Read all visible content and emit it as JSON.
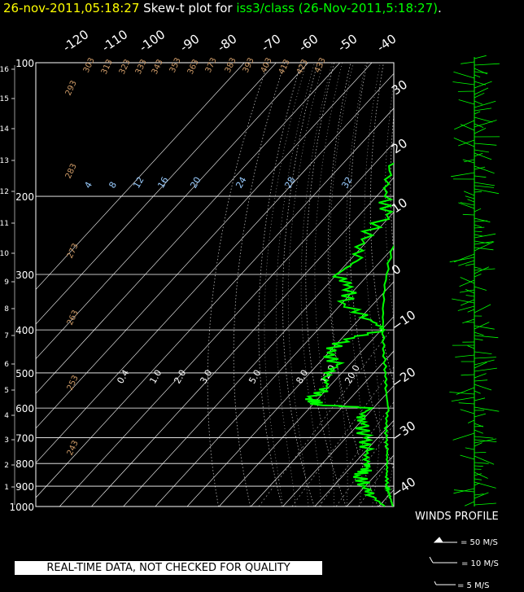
{
  "title": {
    "date": "26-nov-2011,05:18:27",
    "middle": "Skew-t plot for",
    "source": "iss3/class (26-Nov-2011,5:18:27)",
    "end": "."
  },
  "footer": {
    "quality_note": "REAL-TIME DATA, NOT CHECKED FOR QUALITY",
    "winds_title": "WINDS PROFILE",
    "wind_keys": [
      "= 50 M/S",
      "= 10 M/S",
      "= 5 M/S"
    ]
  },
  "colors": {
    "background": "#000000",
    "temperature": "#00ff00",
    "dewpoint": "#00ff00",
    "grid": "#ffffff",
    "theta_labels": "#cc9966",
    "mixing_labels": "#99ccff",
    "title_date": "#ffff00",
    "title_source": "#00ff00"
  },
  "chart_data": {
    "type": "skew-t",
    "pressure_axis": {
      "label_values": [
        100,
        200,
        300,
        400,
        500,
        600,
        700,
        800,
        900,
        1000
      ],
      "range_hpa": [
        1000,
        100
      ],
      "scale": "log"
    },
    "height_axis_km": {
      "ticks": [
        1,
        2,
        3,
        4,
        5,
        6,
        7,
        8,
        9,
        10,
        11,
        12,
        13,
        14,
        15,
        16
      ]
    },
    "temperature_top_labels": [
      -120,
      -110,
      -100,
      -90,
      -80,
      -70,
      -60,
      -50,
      -40
    ],
    "temperature_right_labels": [
      30,
      20,
      10,
      0,
      -10,
      -20,
      -30,
      -40
    ],
    "theta_labels": [
      {
        "text": "293"
      },
      {
        "text": "303"
      },
      {
        "text": "313"
      },
      {
        "text": "323"
      },
      {
        "text": "333"
      },
      {
        "text": "343"
      },
      {
        "text": "353"
      },
      {
        "text": "363"
      },
      {
        "text": "373"
      },
      {
        "text": "383"
      },
      {
        "text": "393"
      },
      {
        "text": "403"
      },
      {
        "text": "413"
      },
      {
        "text": "423"
      },
      {
        "text": "433"
      },
      {
        "text": "283"
      },
      {
        "text": "273"
      },
      {
        "text": "263"
      },
      {
        "text": "253"
      },
      {
        "text": "243"
      }
    ],
    "thetae_labels": [
      "4",
      "8",
      "12",
      "16",
      "20",
      "24",
      "28",
      "32"
    ],
    "mixing_ratio_labels": [
      "0.4",
      "1.0",
      "2.0",
      "3.0",
      "5.0",
      "8.0",
      "12.0",
      "20.0"
    ],
    "temperature_profile": [
      {
        "p": 1000,
        "t": 14.5
      },
      {
        "p": 960,
        "t": 11.5
      },
      {
        "p": 925,
        "t": 8.8
      },
      {
        "p": 900,
        "t": 6.8
      },
      {
        "p": 850,
        "t": 3.6
      },
      {
        "p": 800,
        "t": 0.3
      },
      {
        "p": 750,
        "t": -3.3
      },
      {
        "p": 700,
        "t": -7.4
      },
      {
        "p": 650,
        "t": -11.6
      },
      {
        "p": 600,
        "t": -15.3
      },
      {
        "p": 550,
        "t": -20.8
      },
      {
        "p": 500,
        "t": -26.2
      },
      {
        "p": 450,
        "t": -32.6
      },
      {
        "p": 400,
        "t": -39.4
      },
      {
        "p": 350,
        "t": -46.8
      },
      {
        "p": 300,
        "t": -54.4
      },
      {
        "p": 250,
        "t": -61.8
      },
      {
        "p": 200,
        "t": -68.9
      },
      {
        "p": 175,
        "t": -72.4
      },
      {
        "p": 150,
        "t": -75.6
      },
      {
        "p": 125,
        "t": -79.1
      },
      {
        "p": 100,
        "t": -81.5
      }
    ],
    "dewpoint_profile": [
      {
        "p": 1000,
        "t": 12.0
      },
      {
        "p": 950,
        "t": 5.2
      },
      {
        "p": 900,
        "t": 0.0
      },
      {
        "p": 850,
        "t": -5.2
      },
      {
        "p": 820,
        "t": -4.1
      },
      {
        "p": 800,
        "t": -6.2
      },
      {
        "p": 750,
        "t": -9.8
      },
      {
        "p": 700,
        "t": -14.2
      },
      {
        "p": 650,
        "t": -19.2
      },
      {
        "p": 620,
        "t": -22.1
      },
      {
        "p": 600,
        "t": -20.5
      },
      {
        "p": 590,
        "t": -38.2
      },
      {
        "p": 570,
        "t": -42.4
      },
      {
        "p": 540,
        "t": -40.1
      },
      {
        "p": 510,
        "t": -44.2
      },
      {
        "p": 480,
        "t": -43.9
      },
      {
        "p": 450,
        "t": -50.5
      },
      {
        "p": 420,
        "t": -48.8
      },
      {
        "p": 400,
        "t": -39.0
      },
      {
        "p": 380,
        "t": -46.1
      },
      {
        "p": 350,
        "t": -58.8
      },
      {
        "p": 320,
        "t": -61.6
      },
      {
        "p": 300,
        "t": -70.1
      },
      {
        "p": 280,
        "t": -67.6
      },
      {
        "p": 250,
        "t": -72.3
      },
      {
        "p": 220,
        "t": -71.6
      },
      {
        "p": 200,
        "t": -77.5
      },
      {
        "p": 175,
        "t": -83.4
      },
      {
        "p": 150,
        "t": -86.3
      },
      {
        "p": 125,
        "t": -88.3
      },
      {
        "p": 100,
        "t": -91.7
      }
    ]
  }
}
